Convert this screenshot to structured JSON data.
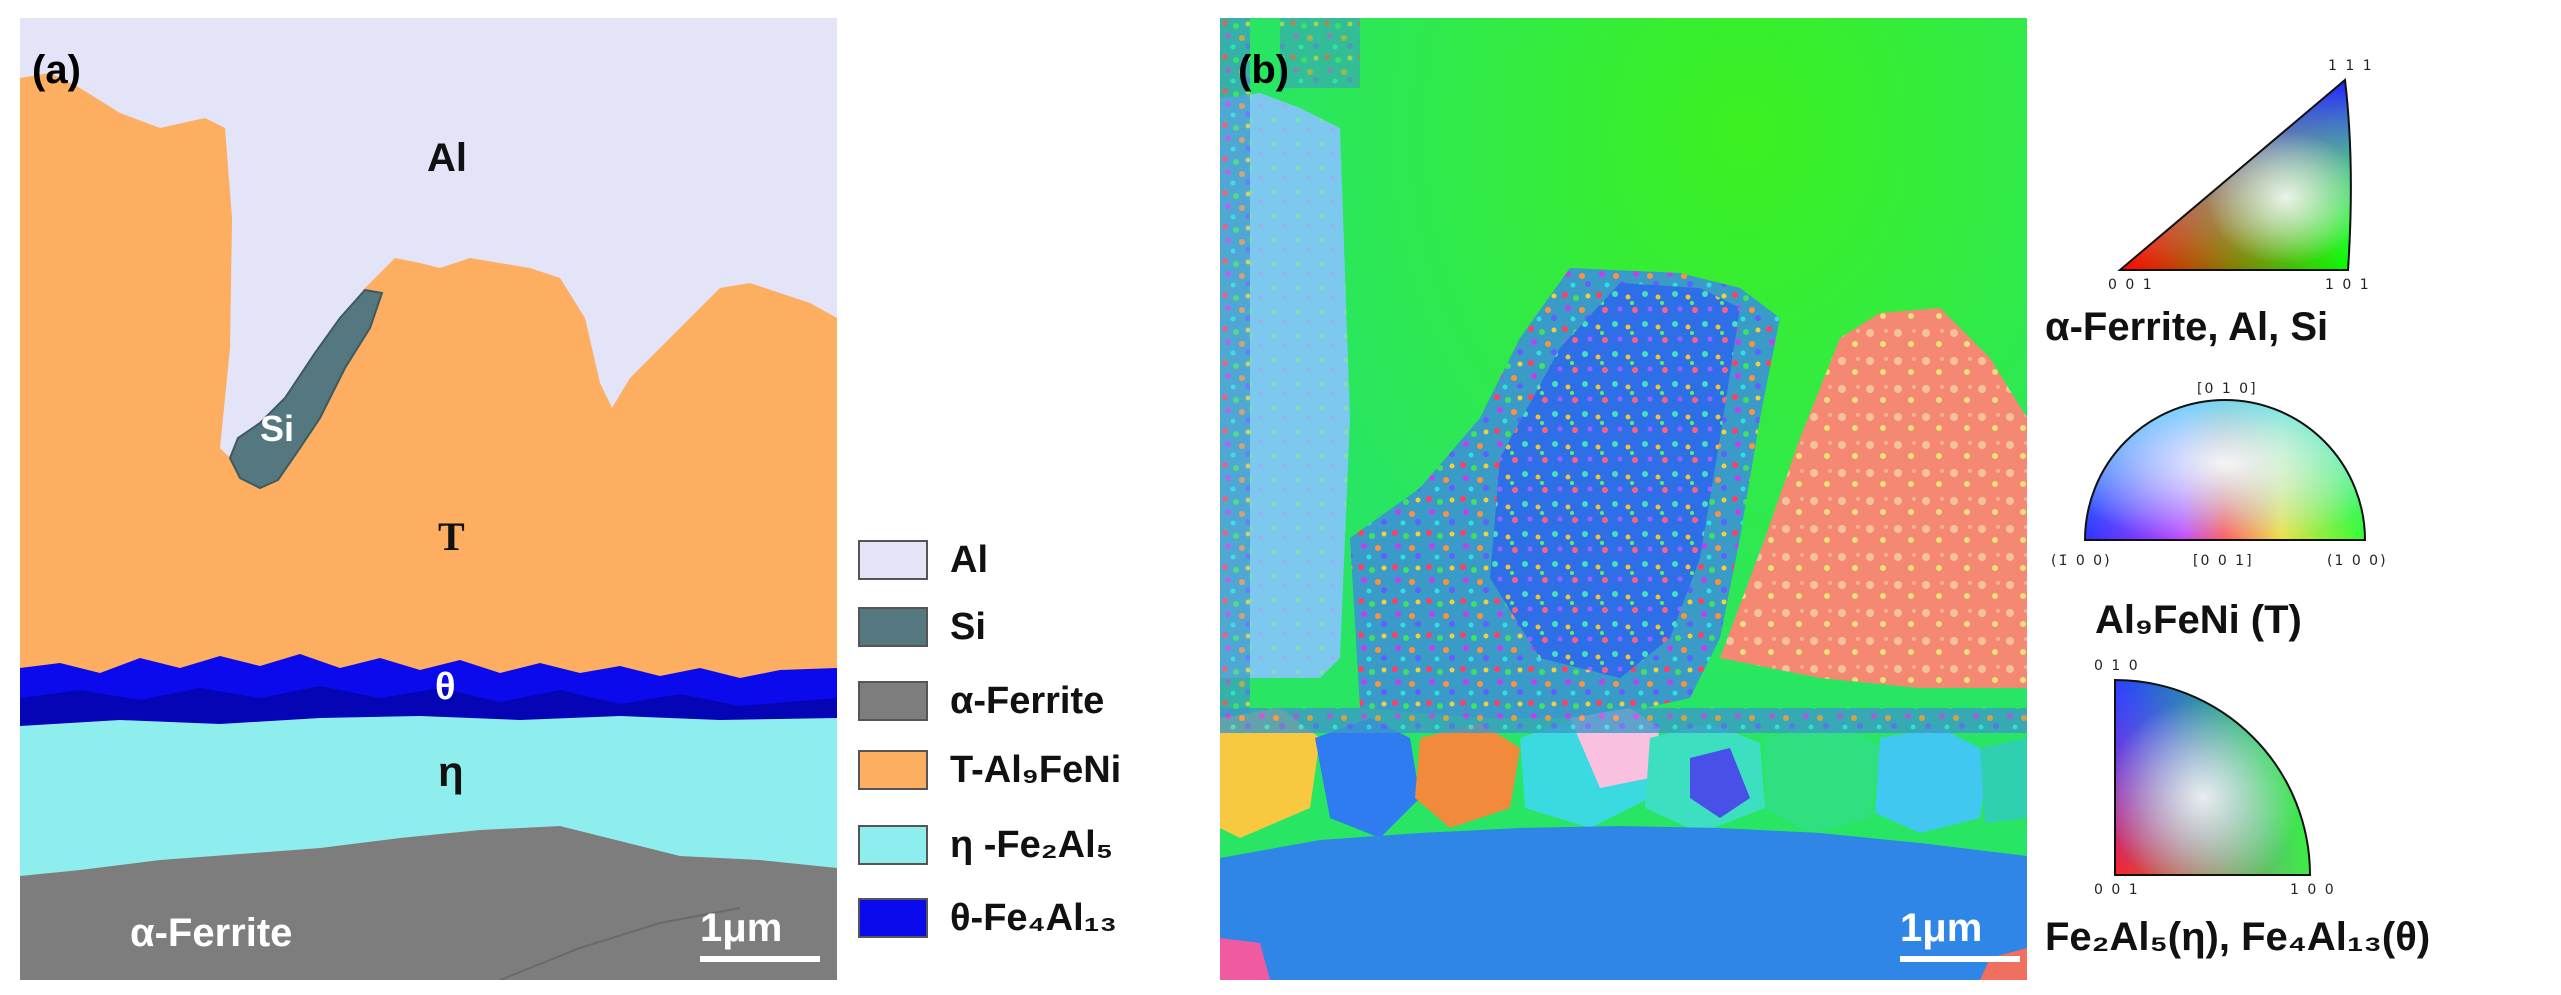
{
  "panel_a": {
    "label": "(a)",
    "phases": {
      "al": "Al",
      "si": "Si",
      "t": "T",
      "theta": "θ",
      "eta": "η",
      "ferrite": "α-Ferrite"
    },
    "scale_bar": "1μm"
  },
  "legend": {
    "items": [
      {
        "label": "Al",
        "color": "#e4e4f8"
      },
      {
        "label": "Si",
        "color": "#55777f"
      },
      {
        "label": "α-Ferrite",
        "color": "#7d7d7d"
      },
      {
        "label": "T-Al₉FeNi",
        "color": "#fdae60"
      },
      {
        "label": "η -Fe₂Al₅",
        "color": "#8eeeee"
      },
      {
        "label": "θ-Fe₄Al₁₃",
        "color": "#0a0aec"
      }
    ]
  },
  "panel_b": {
    "label": "(b)",
    "scale_bar": "1μm"
  },
  "ipf_keys": {
    "key1": {
      "corner_top": "1 1 1",
      "corner_left": "0 0 1",
      "corner_right": "1 0 1",
      "caption": "α-Ferrite, Al, Si"
    },
    "key2": {
      "top": "[0 1 0]",
      "left": "(1̄ 0 0)",
      "center": "[0 0 1]",
      "right": "(1 0 0)",
      "caption": "Al₉FeNi (T)"
    },
    "key3": {
      "top": "0 1 0",
      "bottom_left": "0 0 1",
      "bottom_right": "1 0 0",
      "caption": "Fe₂Al₅(η), Fe₄Al₁₃(θ)"
    }
  }
}
